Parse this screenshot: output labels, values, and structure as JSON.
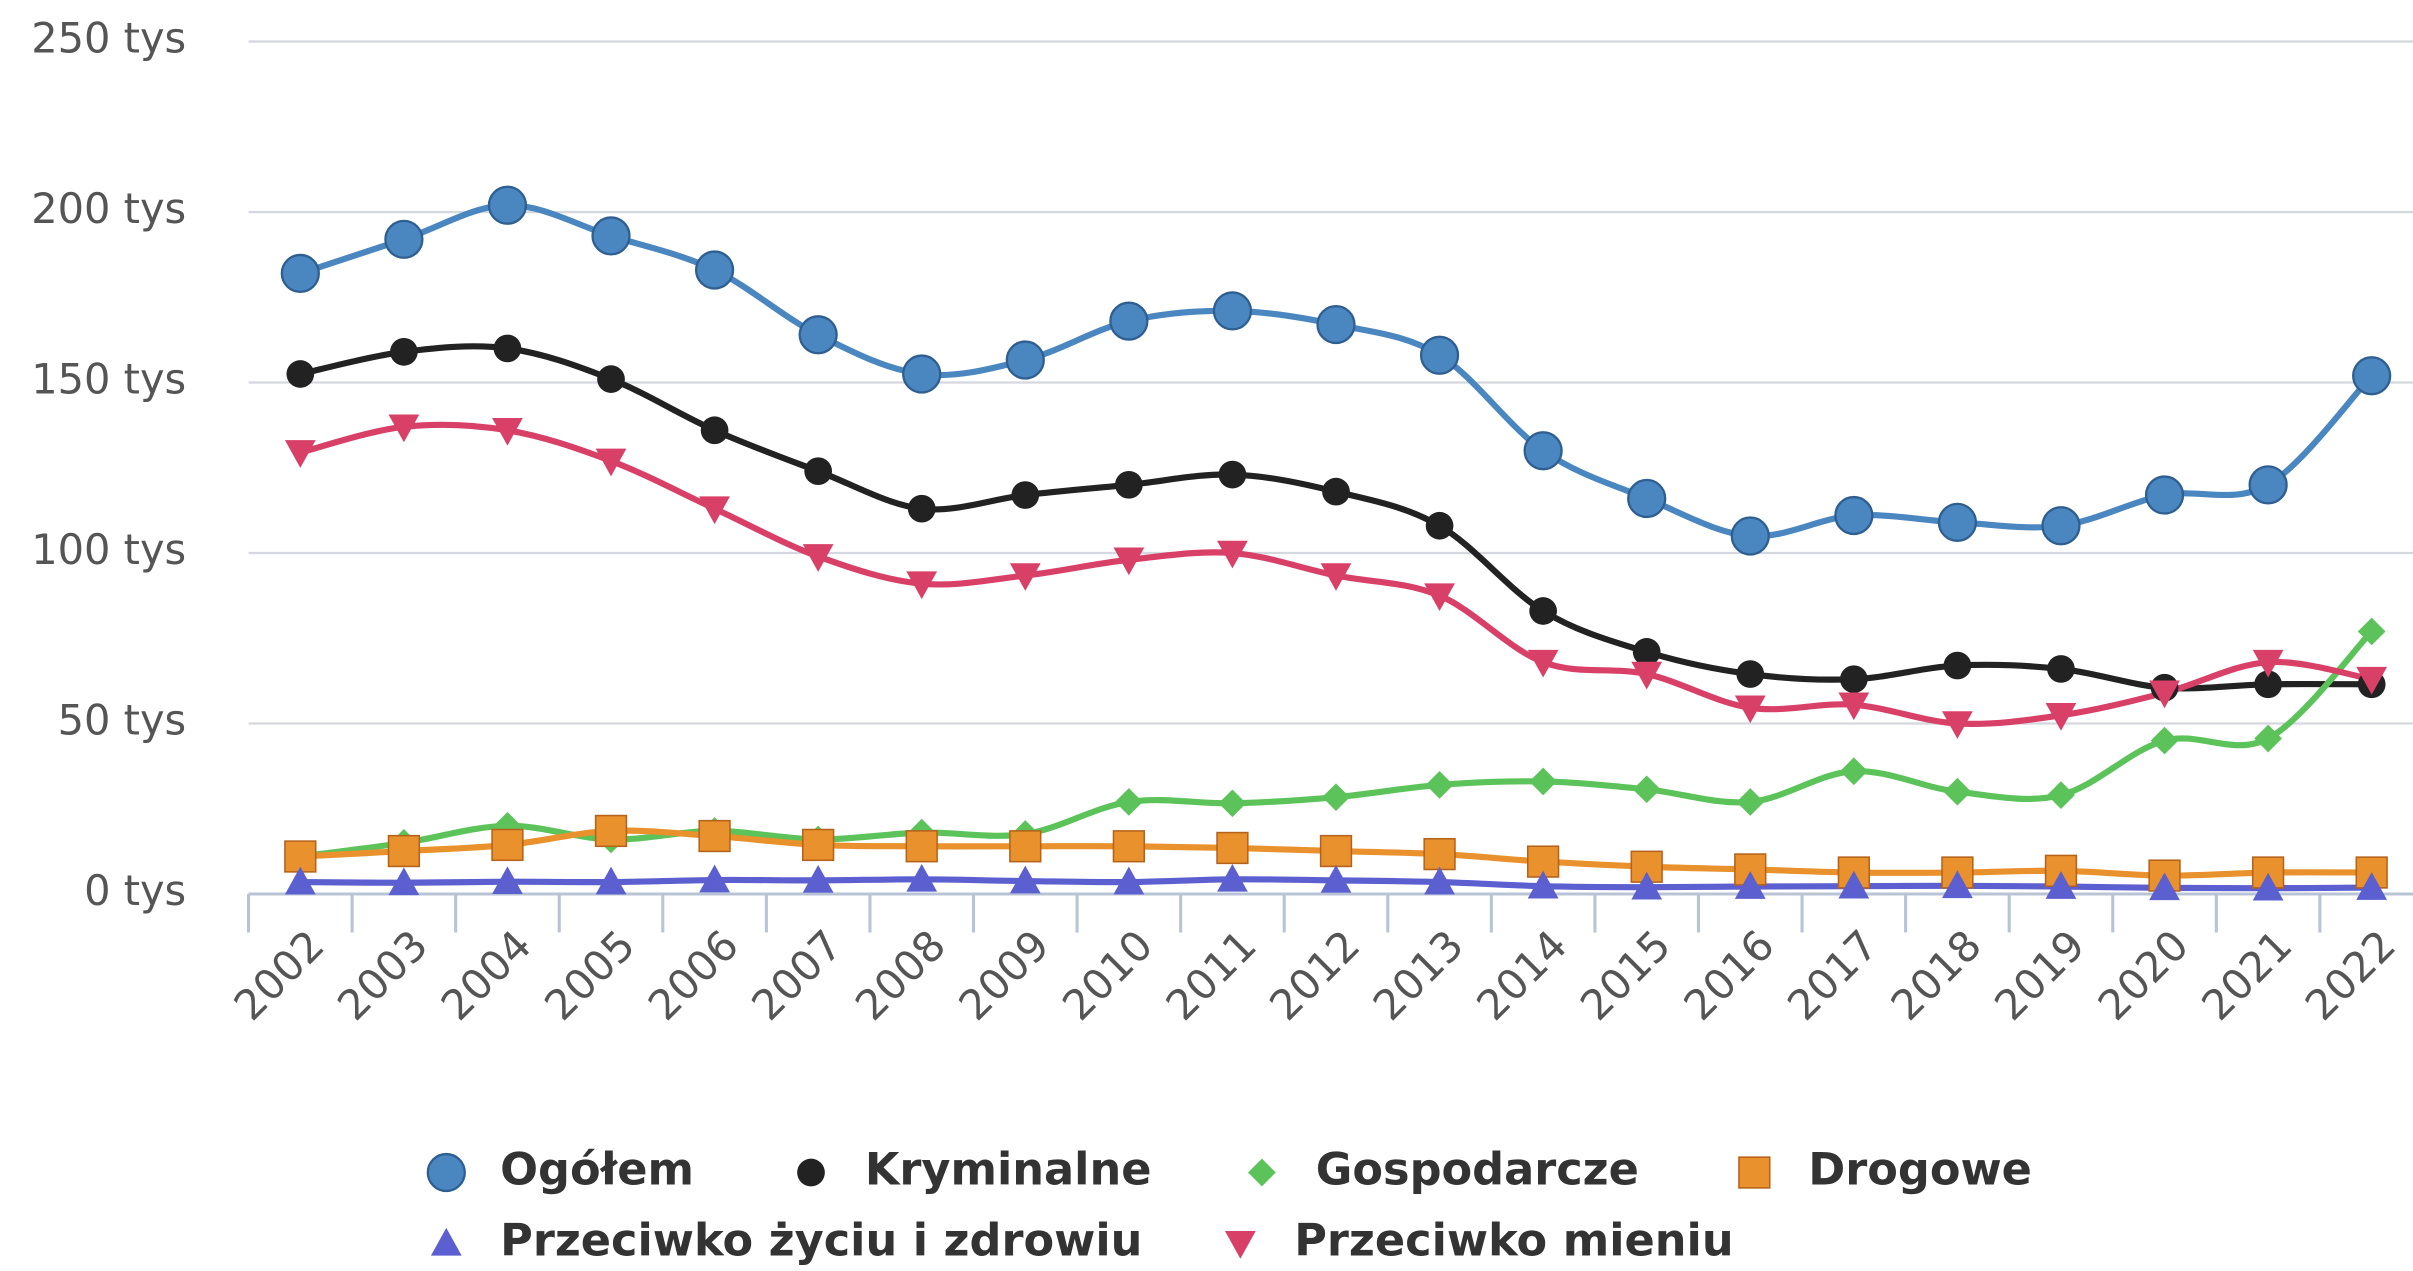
{
  "chart_data": {
    "type": "line",
    "categories": [
      "2002",
      "2003",
      "2004",
      "2005",
      "2006",
      "2007",
      "2008",
      "2009",
      "2010",
      "2011",
      "2012",
      "2013",
      "2014",
      "2015",
      "2016",
      "2017",
      "2018",
      "2019",
      "2020",
      "2021",
      "2022"
    ],
    "ylim": [
      0,
      250
    ],
    "yticks": [
      {
        "value": 0,
        "label": "0 tys"
      },
      {
        "value": 50,
        "label": "50 tys"
      },
      {
        "value": 100,
        "label": "100 tys"
      },
      {
        "value": 150,
        "label": "150 tys"
      },
      {
        "value": 200,
        "label": "200 tys"
      },
      {
        "value": 250,
        "label": "250 tys"
      }
    ],
    "grid": true,
    "legend": "bottom",
    "series": [
      {
        "name": "Ogółem",
        "color": "#4a86c0",
        "marker": "circle",
        "values": [
          182,
          192,
          202,
          193,
          183,
          164,
          152.5,
          156.6,
          168,
          171,
          167,
          158,
          130,
          116,
          105,
          111,
          109,
          108,
          117,
          120,
          152
        ]
      },
      {
        "name": "Kryminalne",
        "color": "#222222",
        "marker": "dot",
        "values": [
          152.5,
          159,
          160,
          151,
          136,
          124,
          113,
          117,
          120,
          123,
          118,
          108,
          83,
          71,
          64.5,
          63,
          67,
          66,
          60.5,
          61.5,
          61.5
        ]
      },
      {
        "name": "Gospodarcze",
        "color": "#5cc35a",
        "marker": "diamond",
        "values": [
          11,
          15,
          20,
          16,
          18.5,
          16,
          18,
          17.6,
          27,
          26.6,
          28.4,
          32,
          33,
          30.7,
          27,
          36,
          30,
          29,
          45,
          45.6,
          77
        ]
      },
      {
        "name": "Drogowe",
        "color": "#e8912d",
        "marker": "square",
        "values": [
          11,
          12.6,
          14.4,
          18.5,
          17,
          14.4,
          14,
          14,
          14,
          13.5,
          12.6,
          11.7,
          9.5,
          8,
          7.2,
          6.3,
          6.3,
          6.8,
          5.4,
          6.3,
          6.3
        ]
      },
      {
        "name": "Przeciwko życiu i zdrowiu",
        "color": "#5b5fcf",
        "marker": "triangle",
        "values": [
          3.5,
          3.3,
          3.6,
          3.5,
          4.1,
          4,
          4.3,
          3.8,
          3.5,
          4.3,
          4,
          3.5,
          2.3,
          2,
          2.2,
          2.3,
          2.4,
          2.2,
          1.8,
          1.7,
          1.9
        ]
      },
      {
        "name": "Przeciwko mieniu",
        "color": "#d94068",
        "marker": "triangle-down",
        "values": [
          129.5,
          137,
          136,
          127,
          113,
          99,
          91,
          93.4,
          98,
          100,
          93.4,
          87.5,
          68,
          64.5,
          54.6,
          55.5,
          50,
          52.4,
          59,
          68,
          63
        ]
      }
    ]
  }
}
